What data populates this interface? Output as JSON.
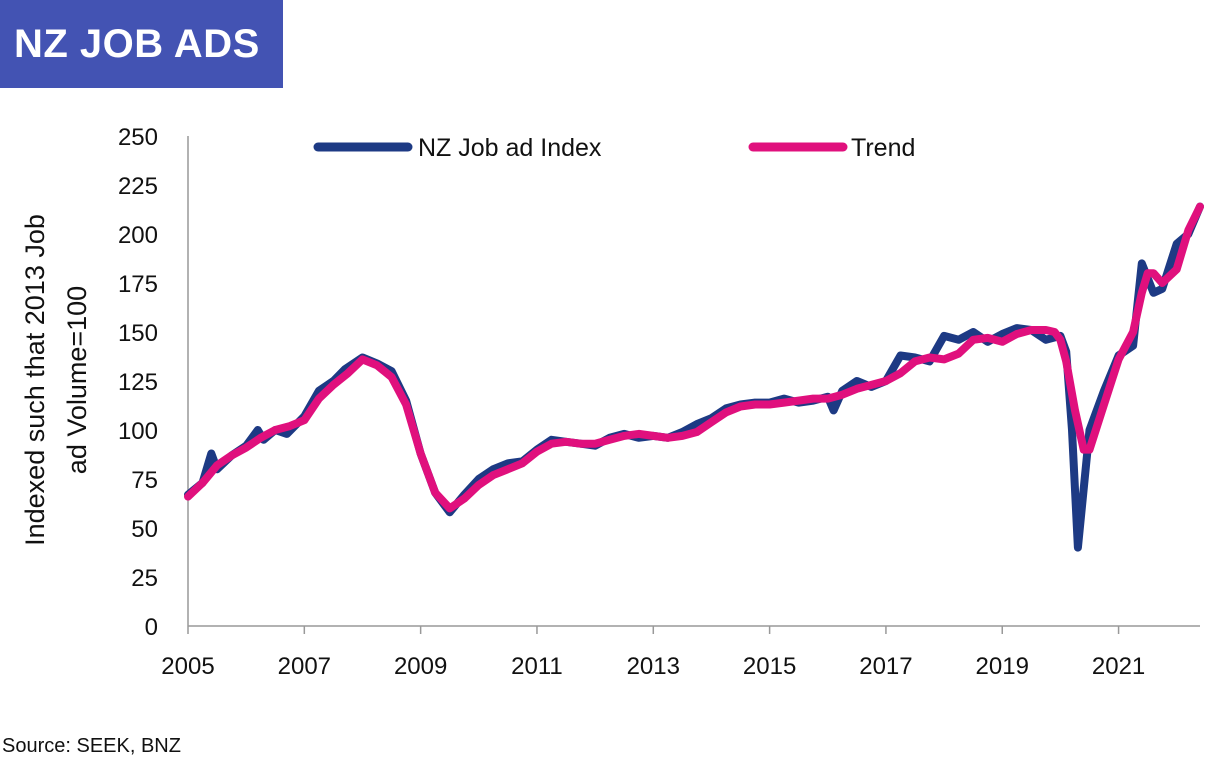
{
  "header": {
    "title": "NZ JOB ADS"
  },
  "footer": {
    "source": "Source: SEEK, BNZ"
  },
  "colors": {
    "title_bg": "#4353b3",
    "index_line": "#1d3a84",
    "trend_line": "#e0107d"
  },
  "chart_data": {
    "type": "line",
    "title": "",
    "ylabel": "Indexed such that 2013 Job ad Volume=100",
    "xlabel": "",
    "ylim": [
      0,
      250
    ],
    "yticks": [
      0,
      25,
      50,
      75,
      100,
      125,
      150,
      175,
      200,
      225,
      250
    ],
    "xlim": [
      2005,
      2022.4
    ],
    "xticks": [
      2005,
      2007,
      2009,
      2011,
      2013,
      2015,
      2017,
      2019,
      2021
    ],
    "legend": "top",
    "grid": false,
    "series": [
      {
        "name": "NZ Job ad Index",
        "color": "#1d3a84",
        "x": [
          2005.0,
          2005.25,
          2005.4,
          2005.5,
          2005.75,
          2006.0,
          2006.2,
          2006.3,
          2006.5,
          2006.7,
          2006.9,
          2007.0,
          2007.25,
          2007.5,
          2007.7,
          2008.0,
          2008.25,
          2008.5,
          2008.75,
          2009.0,
          2009.25,
          2009.5,
          2009.75,
          2010.0,
          2010.25,
          2010.5,
          2010.75,
          2011.0,
          2011.25,
          2011.5,
          2011.75,
          2012.0,
          2012.25,
          2012.5,
          2012.75,
          2013.0,
          2013.25,
          2013.5,
          2013.75,
          2014.0,
          2014.25,
          2014.5,
          2014.75,
          2015.0,
          2015.25,
          2015.5,
          2015.75,
          2016.0,
          2016.1,
          2016.25,
          2016.5,
          2016.75,
          2017.0,
          2017.25,
          2017.5,
          2017.75,
          2018.0,
          2018.25,
          2018.5,
          2018.75,
          2019.0,
          2019.25,
          2019.5,
          2019.75,
          2020.0,
          2020.1,
          2020.2,
          2020.3,
          2020.5,
          2020.75,
          2021.0,
          2021.25,
          2021.4,
          2021.6,
          2021.75,
          2022.0,
          2022.2,
          2022.4
        ],
        "y": [
          67,
          73,
          88,
          80,
          87,
          92,
          100,
          95,
          100,
          98,
          104,
          107,
          120,
          125,
          131,
          137,
          134,
          130,
          115,
          88,
          68,
          58,
          67,
          75,
          80,
          83,
          84,
          90,
          95,
          94,
          93,
          92,
          96,
          98,
          96,
          97,
          96,
          99,
          103,
          106,
          111,
          113,
          114,
          114,
          116,
          114,
          115,
          117,
          110,
          120,
          125,
          122,
          125,
          138,
          137,
          135,
          148,
          146,
          150,
          145,
          149,
          152,
          151,
          146,
          148,
          140,
          100,
          40,
          100,
          120,
          138,
          143,
          185,
          170,
          172,
          195,
          200,
          214
        ]
      },
      {
        "name": "Trend",
        "color": "#e0107d",
        "x": [
          2005.0,
          2005.25,
          2005.5,
          2005.75,
          2006.0,
          2006.25,
          2006.5,
          2006.75,
          2007.0,
          2007.25,
          2007.5,
          2007.75,
          2008.0,
          2008.25,
          2008.5,
          2008.75,
          2009.0,
          2009.25,
          2009.5,
          2009.75,
          2010.0,
          2010.25,
          2010.5,
          2010.75,
          2011.0,
          2011.25,
          2011.5,
          2011.75,
          2012.0,
          2012.25,
          2012.5,
          2012.75,
          2013.0,
          2013.25,
          2013.5,
          2013.75,
          2014.0,
          2014.25,
          2014.5,
          2014.75,
          2015.0,
          2015.25,
          2015.5,
          2015.75,
          2016.0,
          2016.25,
          2016.5,
          2016.75,
          2017.0,
          2017.25,
          2017.5,
          2017.75,
          2018.0,
          2018.25,
          2018.5,
          2018.75,
          2019.0,
          2019.25,
          2019.5,
          2019.75,
          2019.9,
          2020.0,
          2020.1,
          2020.25,
          2020.4,
          2020.5,
          2020.75,
          2021.0,
          2021.25,
          2021.4,
          2021.5,
          2021.6,
          2021.75,
          2022.0,
          2022.2,
          2022.4
        ],
        "y": [
          66,
          73,
          82,
          87,
          91,
          96,
          100,
          102,
          105,
          116,
          123,
          129,
          136,
          133,
          127,
          113,
          88,
          68,
          60,
          65,
          72,
          77,
          80,
          83,
          89,
          93,
          94,
          93,
          93,
          95,
          97,
          98,
          97,
          96,
          97,
          99,
          104,
          109,
          112,
          113,
          113,
          114,
          115,
          116,
          116,
          118,
          121,
          123,
          125,
          129,
          135,
          137,
          136,
          139,
          146,
          147,
          145,
          149,
          151,
          151,
          150,
          146,
          135,
          110,
          90,
          90,
          113,
          136,
          150,
          170,
          180,
          180,
          175,
          182,
          202,
          214
        ]
      }
    ]
  }
}
